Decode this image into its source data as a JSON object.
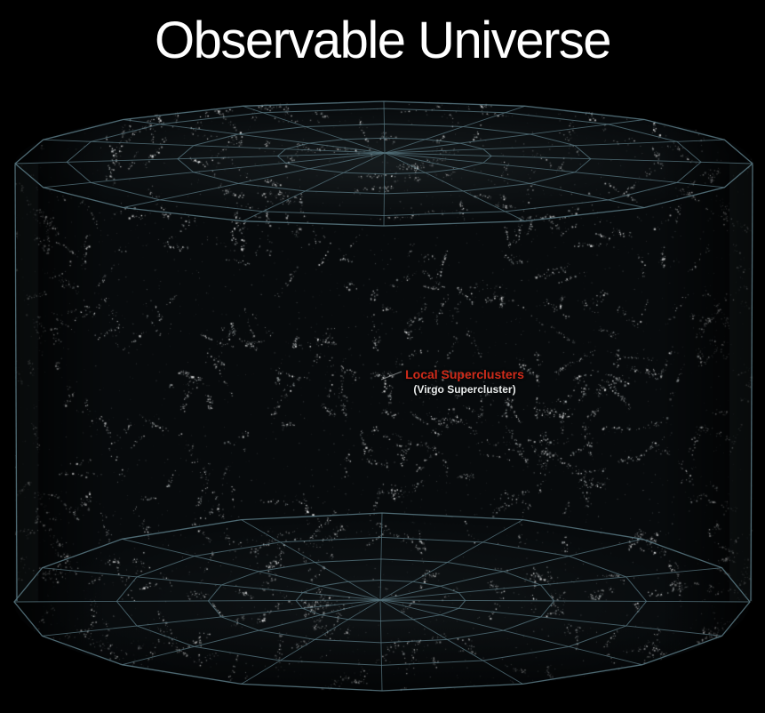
{
  "title": "Observable Universe",
  "center_label": {
    "primary": "Local Superclusters",
    "secondary": "(Virgo Supercluster)"
  },
  "colors": {
    "background": "#000000",
    "title_text": "#ffffff",
    "label_primary_text": "#d02b1a",
    "label_secondary_text": "#e8ebeb",
    "grid_line": "#55737d",
    "pointer_line": "#c8cdcd",
    "star_bright": "#ffffff",
    "star_dim": "#b8c0c2",
    "cylinder_base": "#070a0c"
  }
}
